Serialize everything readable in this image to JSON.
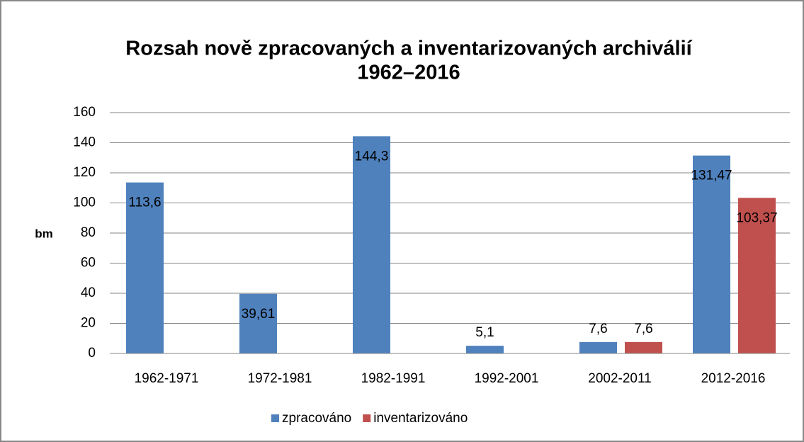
{
  "chart_data": {
    "type": "bar",
    "title": [
      "Rozsah nově zpracovaných a inventarizovaných archiválií",
      "1962–2016"
    ],
    "y_label": "bm",
    "categories": [
      "1962-1971",
      "1972-1981",
      "1982-1991",
      "1992-2001",
      "2002-2011",
      "2012-2016"
    ],
    "series": [
      {
        "name": "zpracováno",
        "color": "#4f81bd",
        "values": [
          113.6,
          39.61,
          144.3,
          5.1,
          7.6,
          131.47
        ],
        "value_labels": [
          "113,6",
          "39,61",
          "144,3",
          "5,1",
          "7,6",
          "131,47"
        ]
      },
      {
        "name": "inventarizováno",
        "color": "#c0504d",
        "values": [
          null,
          null,
          null,
          null,
          7.6,
          103.37
        ],
        "value_labels": [
          null,
          null,
          null,
          null,
          "7,6",
          "103,37"
        ]
      }
    ],
    "ylim": [
      0,
      160
    ],
    "yticks": [
      0,
      20,
      40,
      60,
      80,
      100,
      120,
      140,
      160
    ],
    "grid": true,
    "legend": "bottom"
  }
}
